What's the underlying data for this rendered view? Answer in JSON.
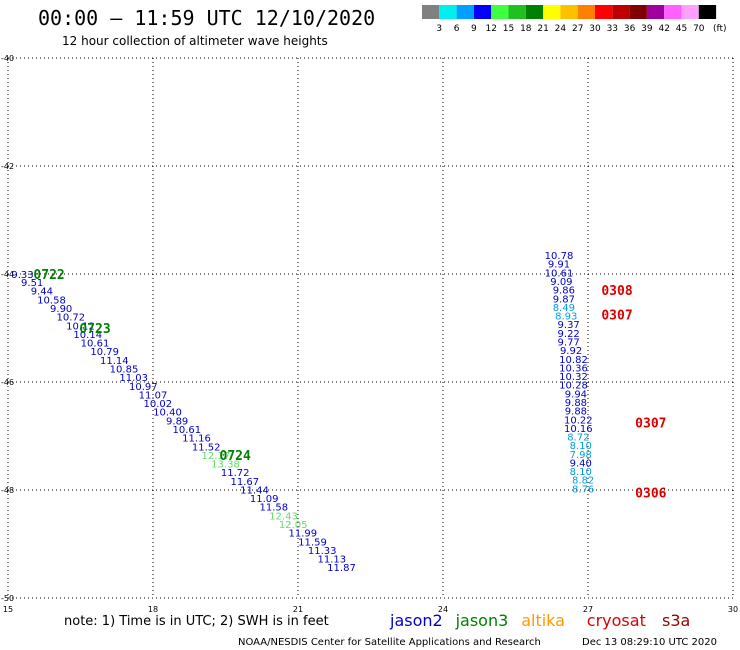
{
  "header": {
    "title": "00:00 – 11:59 UTC 12/10/2020",
    "subtitle": "12 hour collection of altimeter wave heights"
  },
  "legend_bar": {
    "colors": [
      "#808080",
      "#00f0f0",
      "#00a0ff",
      "#0000ff",
      "#40ff40",
      "#20c020",
      "#008000",
      "#ffff00",
      "#ffc000",
      "#ff8000",
      "#ff0000",
      "#c00000",
      "#800000",
      "#a000a0",
      "#ff60ff",
      "#ffa0ff",
      "#000000"
    ],
    "labels": [
      "3",
      "6",
      "9",
      "12",
      "15",
      "18",
      "21",
      "24",
      "27",
      "30",
      "33",
      "36",
      "39",
      "42",
      "45",
      "70"
    ],
    "unit": "(ft)"
  },
  "footer": {
    "note": "note: 1) Time is in UTC; 2) SWH is in feet",
    "credit": "NOAA/NESDIS Center for Satellite Applications and Research",
    "timestamp": "Dec 13 08:29:10 UTC 2020"
  },
  "satellites": [
    {
      "name": "jason2",
      "color": "#0000cc"
    },
    {
      "name": "jason3",
      "color": "#008000"
    },
    {
      "name": "altika",
      "color": "#ff9900"
    },
    {
      "name": "cryosat",
      "color": "#dd0000"
    },
    {
      "name": "s3a",
      "color": "#990000"
    }
  ],
  "chart_data": {
    "type": "scatter",
    "title": "00:00 – 11:59 UTC 12/10/2020",
    "subtitle": "12 hour collection of altimeter wave heights",
    "xlim": [
      15,
      30
    ],
    "ylim": [
      -50,
      -40
    ],
    "xticks": [
      "15",
      "18",
      "21",
      "24",
      "27",
      "30"
    ],
    "yticks": [
      "-40",
      "-42",
      "-44",
      "-46",
      "-48",
      "-50"
    ],
    "grid": true,
    "points": [
      {
        "x": 15.3,
        "y": -44.0,
        "label": "9.33",
        "color": "#0000cc"
      },
      {
        "x": 15.5,
        "y": -44.15,
        "label": "9.51",
        "color": "#0000cc"
      },
      {
        "x": 15.7,
        "y": -44.31,
        "label": "9.44",
        "color": "#0000cc"
      },
      {
        "x": 15.9,
        "y": -44.47,
        "label": "10.58",
        "color": "#0000cc"
      },
      {
        "x": 16.1,
        "y": -44.63,
        "label": "9.90",
        "color": "#0000cc"
      },
      {
        "x": 16.3,
        "y": -44.79,
        "label": "10.72",
        "color": "#0000cc"
      },
      {
        "x": 16.5,
        "y": -44.95,
        "label": "10.12",
        "color": "#0000cc"
      },
      {
        "x": 16.65,
        "y": -45.11,
        "label": "10.14",
        "color": "#0000cc"
      },
      {
        "x": 16.8,
        "y": -45.27,
        "label": "10.61",
        "color": "#0000cc"
      },
      {
        "x": 17.0,
        "y": -45.43,
        "label": "10.79",
        "color": "#0000cc"
      },
      {
        "x": 17.2,
        "y": -45.59,
        "label": "11.14",
        "color": "#0000cc"
      },
      {
        "x": 17.4,
        "y": -45.75,
        "label": "10.85",
        "color": "#0000cc"
      },
      {
        "x": 17.6,
        "y": -45.91,
        "label": "11.03",
        "color": "#0000cc"
      },
      {
        "x": 17.8,
        "y": -46.07,
        "label": "10.97",
        "color": "#0000cc"
      },
      {
        "x": 18.0,
        "y": -46.23,
        "label": "11.07",
        "color": "#0000cc"
      },
      {
        "x": 18.1,
        "y": -46.39,
        "label": "10.02",
        "color": "#0000cc"
      },
      {
        "x": 18.3,
        "y": -46.55,
        "label": "10.40",
        "color": "#0000cc"
      },
      {
        "x": 18.5,
        "y": -46.71,
        "label": "9.89",
        "color": "#0000cc"
      },
      {
        "x": 18.7,
        "y": -46.87,
        "label": "10.61",
        "color": "#0000cc"
      },
      {
        "x": 18.9,
        "y": -47.03,
        "label": "11.16",
        "color": "#0000cc"
      },
      {
        "x": 19.1,
        "y": -47.19,
        "label": "11.52",
        "color": "#0000cc"
      },
      {
        "x": 19.3,
        "y": -47.35,
        "label": "12.17",
        "color": "#60e060"
      },
      {
        "x": 19.5,
        "y": -47.51,
        "label": "13.38",
        "color": "#60e060"
      },
      {
        "x": 19.7,
        "y": -47.67,
        "label": "11.72",
        "color": "#0000cc"
      },
      {
        "x": 19.9,
        "y": -47.83,
        "label": "11.67",
        "color": "#0000cc"
      },
      {
        "x": 20.1,
        "y": -47.99,
        "label": "11.44",
        "color": "#0000cc"
      },
      {
        "x": 20.3,
        "y": -48.15,
        "label": "11.09",
        "color": "#0000cc"
      },
      {
        "x": 20.5,
        "y": -48.31,
        "label": "11.58",
        "color": "#0000cc"
      },
      {
        "x": 20.7,
        "y": -48.47,
        "label": "12.43",
        "color": "#60e060"
      },
      {
        "x": 20.9,
        "y": -48.63,
        "label": "12.05",
        "color": "#60e060"
      },
      {
        "x": 21.1,
        "y": -48.79,
        "label": "11.99",
        "color": "#0000cc"
      },
      {
        "x": 21.3,
        "y": -48.95,
        "label": "11.59",
        "color": "#0000cc"
      },
      {
        "x": 21.5,
        "y": -49.11,
        "label": "11.33",
        "color": "#0000cc"
      },
      {
        "x": 21.7,
        "y": -49.27,
        "label": "11.13",
        "color": "#0000cc"
      },
      {
        "x": 21.9,
        "y": -49.43,
        "label": "11.87",
        "color": "#0000cc"
      },
      {
        "x": 26.4,
        "y": -43.65,
        "label": "10.78",
        "color": "#0000cc"
      },
      {
        "x": 26.4,
        "y": -43.81,
        "label": "9.91",
        "color": "#0000cc"
      },
      {
        "x": 26.4,
        "y": -43.97,
        "label": "10.61",
        "color": "#0000cc"
      },
      {
        "x": 26.45,
        "y": -44.13,
        "label": "9.09",
        "color": "#0000cc"
      },
      {
        "x": 26.5,
        "y": -44.29,
        "label": "9.86",
        "color": "#0000cc"
      },
      {
        "x": 26.5,
        "y": -44.45,
        "label": "9.87",
        "color": "#0000cc"
      },
      {
        "x": 26.5,
        "y": -44.61,
        "label": "8.49",
        "color": "#00a0e0"
      },
      {
        "x": 26.55,
        "y": -44.77,
        "label": "8.93",
        "color": "#00a0e0"
      },
      {
        "x": 26.6,
        "y": -44.93,
        "label": "9.37",
        "color": "#0000cc"
      },
      {
        "x": 26.6,
        "y": -45.09,
        "label": "9.22",
        "color": "#0000cc"
      },
      {
        "x": 26.6,
        "y": -45.25,
        "label": "9.77",
        "color": "#0000cc"
      },
      {
        "x": 26.65,
        "y": -45.41,
        "label": "9.92",
        "color": "#0000cc"
      },
      {
        "x": 26.7,
        "y": -45.57,
        "label": "10.82",
        "color": "#0000cc"
      },
      {
        "x": 26.7,
        "y": -45.73,
        "label": "10.36",
        "color": "#0000cc"
      },
      {
        "x": 26.7,
        "y": -45.89,
        "label": "10.32",
        "color": "#0000cc"
      },
      {
        "x": 26.7,
        "y": -46.05,
        "label": "10.28",
        "color": "#0000cc"
      },
      {
        "x": 26.75,
        "y": -46.21,
        "label": "9.94",
        "color": "#0000cc"
      },
      {
        "x": 26.75,
        "y": -46.37,
        "label": "9.88",
        "color": "#0000cc"
      },
      {
        "x": 26.75,
        "y": -46.53,
        "label": "9.88",
        "color": "#0000cc"
      },
      {
        "x": 26.8,
        "y": -46.69,
        "label": "10.22",
        "color": "#0000cc"
      },
      {
        "x": 26.8,
        "y": -46.85,
        "label": "10.16",
        "color": "#0000cc"
      },
      {
        "x": 26.8,
        "y": -47.01,
        "label": "8.72",
        "color": "#00a0e0"
      },
      {
        "x": 26.85,
        "y": -47.17,
        "label": "8.10",
        "color": "#00a0e0"
      },
      {
        "x": 26.85,
        "y": -47.33,
        "label": "7.98",
        "color": "#00a0e0"
      },
      {
        "x": 26.85,
        "y": -47.49,
        "label": "9.40",
        "color": "#0000cc"
      },
      {
        "x": 26.85,
        "y": -47.65,
        "label": "8.10",
        "color": "#00a0e0"
      },
      {
        "x": 26.9,
        "y": -47.81,
        "label": "8.82",
        "color": "#00a0e0"
      },
      {
        "x": 26.9,
        "y": -47.97,
        "label": "8.76",
        "color": "#00a0e0"
      }
    ],
    "pass_labels": [
      {
        "x": 15.85,
        "y": -44.0,
        "label": "0722",
        "color": "#008000"
      },
      {
        "x": 16.8,
        "y": -45.0,
        "label": "0723",
        "color": "#008000"
      },
      {
        "x": 19.7,
        "y": -47.35,
        "label": "0724",
        "color": "#008000"
      },
      {
        "x": 27.6,
        "y": -44.3,
        "label": "0308",
        "color": "#dd0000"
      },
      {
        "x": 27.6,
        "y": -44.75,
        "label": "0307",
        "color": "#dd0000"
      },
      {
        "x": 28.3,
        "y": -46.75,
        "label": "0307",
        "color": "#dd0000"
      },
      {
        "x": 28.3,
        "y": -48.05,
        "label": "0306",
        "color": "#dd0000"
      }
    ]
  }
}
